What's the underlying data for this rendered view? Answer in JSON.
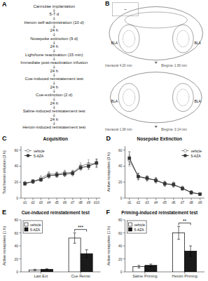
{
  "chart_data": [
    {
      "type": "flow",
      "annotations": [
        {
          "text": "A"
        }
      ],
      "steps": [
        "Cannulae implantation",
        "5-7 d",
        "Heroin self-administration (10 d)",
        "24 h",
        "Nosepoke extinction (9 d)",
        "24 h",
        "Light/tone reactivation (15 min)",
        "Immediate post-reactivation infusion",
        "24 h",
        "Cue-induced reinstatement test",
        "24 h",
        "Cue-extinction (2 d)",
        "24 h",
        "Saline-induced reinstatement test",
        "24 h",
        "Heroin-induced reinstatement test"
      ]
    },
    {
      "type": "diagram",
      "annotations": [
        {
          "text": "B"
        },
        {
          "text": "~"
        },
        {
          "text": "BLA"
        },
        {
          "text": "BLA"
        },
        {
          "text": "Interaural 4.20 mm"
        },
        {
          "text": "Bregma -1.80 mm"
        },
        {
          "text": "BLA"
        },
        {
          "text": "BLA"
        },
        {
          "text": "Interaural 1.08 mm"
        },
        {
          "text": "Bregma -3.14 mm"
        }
      ]
    },
    {
      "type": "line",
      "title": "Acquisition",
      "ylabel": "Total heroin infusion (3 h)",
      "categories": [
        "d1",
        "d2",
        "d3",
        "d4",
        "d5",
        "d6",
        "d7",
        "d8",
        "d9",
        "d10"
      ],
      "series": [
        {
          "name": "vehicle",
          "color": "#888888",
          "marker": "circle",
          "values": [
            19,
            20,
            25,
            30,
            30,
            32,
            32,
            40,
            43,
            43
          ],
          "errors": [
            2,
            2,
            3,
            3,
            3,
            3,
            3,
            4,
            5,
            5
          ]
        },
        {
          "name": "5-AZA",
          "color": "#333333",
          "marker": "square",
          "values": [
            18,
            21,
            23,
            28,
            29,
            30,
            31,
            38,
            40,
            44
          ],
          "errors": [
            2,
            2,
            2,
            3,
            3,
            3,
            3,
            3,
            4,
            5
          ]
        }
      ],
      "ylim": [
        0,
        65
      ],
      "yticks": [
        0,
        20,
        40,
        60
      ],
      "legend": "upper left",
      "grid": false,
      "annotations": [
        {
          "text": "C"
        }
      ]
    },
    {
      "type": "line",
      "title": "Nosepoke Extinction",
      "ylabel": "Active nosepokes (3 h)",
      "categories": [
        "d1",
        "d2",
        "d3",
        "d4",
        "d5",
        "d6",
        "d7",
        "d8",
        "d9"
      ],
      "series": [
        {
          "name": "vehicle",
          "color": "#888888",
          "marker": "circle",
          "values": [
            47,
            27,
            24,
            23,
            18,
            16,
            13,
            7,
            5
          ],
          "errors": [
            7,
            4,
            3,
            3,
            3,
            2,
            2,
            2,
            1
          ]
        },
        {
          "name": "5-AZA",
          "color": "#333333",
          "marker": "square",
          "values": [
            50,
            27,
            25,
            22,
            18,
            17,
            12,
            7,
            5
          ],
          "errors": [
            8,
            4,
            3,
            3,
            3,
            3,
            2,
            2,
            1
          ]
        }
      ],
      "ylim": [
        0,
        65
      ],
      "yticks": [
        0,
        20,
        40,
        60
      ],
      "legend": "upper right",
      "grid": false,
      "annotations": [
        {
          "text": "D"
        }
      ]
    },
    {
      "type": "bar",
      "title": "Cue-induced reinstatement test",
      "ylabel": "Active nosepokes (1 h)",
      "categories": [
        "Last Ext",
        "Cue Reinst"
      ],
      "series": [
        {
          "name": "vehicle",
          "color": "#ffffff",
          "values": [
            3,
            52
          ],
          "errors": [
            1,
            8
          ]
        },
        {
          "name": "5-AZA",
          "color": "#1a1a1a",
          "values": [
            4,
            28
          ],
          "errors": [
            1,
            6
          ]
        }
      ],
      "ylim": [
        0,
        80
      ],
      "yticks": [
        0,
        20,
        40,
        60,
        80
      ],
      "legend": "upper left",
      "grid": false,
      "annotations": [
        {
          "text": "E"
        },
        {
          "text": "***",
          "category": "Cue Reinst",
          "y": 62
        }
      ]
    },
    {
      "type": "bar",
      "title": "Priming-induced reinstatement test",
      "ylabel": "Active nosepokes (1 h)",
      "categories": [
        "Saline Priming",
        "Heroin Priming"
      ],
      "series": [
        {
          "name": "vehicle",
          "color": "#ffffff",
          "values": [
            8,
            60
          ],
          "errors": [
            2,
            10
          ]
        },
        {
          "name": "5-AZA",
          "color": "#1a1a1a",
          "values": [
            10,
            32
          ],
          "errors": [
            2,
            8
          ]
        }
      ],
      "ylim": [
        0,
        80
      ],
      "yticks": [
        0,
        20,
        40,
        60,
        80
      ],
      "legend": "upper left",
      "grid": false,
      "annotations": [
        {
          "text": "F"
        },
        {
          "text": "**",
          "category": "Heroin Priming",
          "y": 72
        }
      ]
    }
  ]
}
